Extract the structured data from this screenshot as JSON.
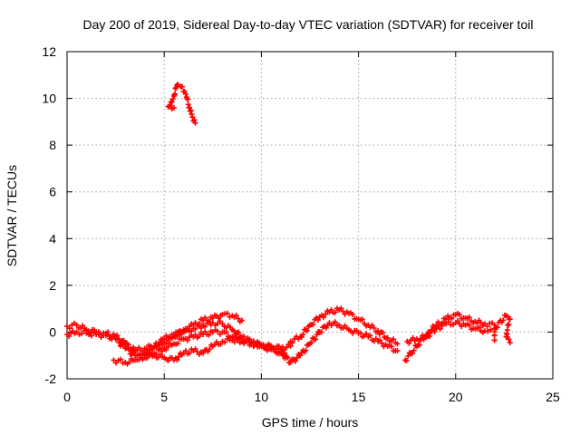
{
  "chart_data": {
    "type": "scatter",
    "title": "Day 200 of 2019, Sidereal Day-to-day VTEC variation (SDTVAR) for receiver toil",
    "xlabel": "GPS time / hours",
    "ylabel": "SDTVAR / TECUs",
    "xlim": [
      0,
      25
    ],
    "ylim": [
      -2,
      12
    ],
    "xticks": [
      0,
      5,
      10,
      15,
      20,
      25
    ],
    "yticks": [
      -2,
      0,
      2,
      4,
      6,
      8,
      10,
      12
    ],
    "grid": true,
    "marker": "plus",
    "color": "#ff0000",
    "series": [
      {
        "name": "s1",
        "points": [
          [
            0,
            0.25
          ],
          [
            0.5,
            0.3
          ],
          [
            1,
            0.1
          ],
          [
            1.5,
            0
          ],
          [
            2,
            -0.05
          ],
          [
            2.5,
            -0.2
          ],
          [
            3,
            -0.5
          ],
          [
            3.5,
            -0.8
          ],
          [
            4,
            -0.7
          ],
          [
            4.5,
            -0.6
          ],
          [
            5,
            -0.45
          ],
          [
            5.5,
            -0.2
          ],
          [
            6,
            0.1
          ],
          [
            6.5,
            0.3
          ],
          [
            7,
            0.5
          ],
          [
            7.5,
            0.6
          ],
          [
            8,
            0.75
          ],
          [
            8.5,
            0.7
          ],
          [
            9,
            0.5
          ]
        ]
      },
      {
        "name": "s2",
        "points": [
          [
            0,
            -0.1
          ],
          [
            0.5,
            0
          ],
          [
            1,
            -0.05
          ],
          [
            1.5,
            -0.1
          ],
          [
            2,
            -0.15
          ],
          [
            2.5,
            -0.3
          ],
          [
            3,
            -0.7
          ],
          [
            3.5,
            -1
          ],
          [
            4,
            -1.1
          ],
          [
            4.5,
            -0.9
          ],
          [
            5,
            -0.7
          ],
          [
            5.5,
            -0.5
          ],
          [
            6,
            -0.3
          ],
          [
            6.5,
            -0.2
          ],
          [
            7,
            -0.1
          ],
          [
            7.5,
            0
          ],
          [
            8,
            0
          ],
          [
            8.5,
            -0.2
          ],
          [
            9,
            -0.4
          ],
          [
            9.5,
            -0.5
          ],
          [
            10,
            -0.6
          ],
          [
            10.5,
            -0.6
          ],
          [
            11,
            -0.7
          ],
          [
            11.5,
            -0.6
          ]
        ]
      },
      {
        "name": "s3",
        "points": [
          [
            2.4,
            -1.2
          ],
          [
            3,
            -1.3
          ],
          [
            3.5,
            -1.2
          ],
          [
            4,
            -0.95
          ],
          [
            4.5,
            -0.6
          ],
          [
            5,
            -0.3
          ],
          [
            5.5,
            -0.1
          ],
          [
            6,
            0
          ],
          [
            6.5,
            0.15
          ],
          [
            7,
            0.3
          ],
          [
            7.5,
            0.4
          ],
          [
            8,
            0.35
          ],
          [
            8.5,
            0.1
          ],
          [
            9,
            -0.2
          ],
          [
            9.5,
            -0.45
          ],
          [
            10,
            -0.6
          ],
          [
            10.5,
            -0.75
          ],
          [
            11,
            -0.9
          ],
          [
            11.3,
            -1.05
          ]
        ]
      },
      {
        "name": "s4",
        "points": [
          [
            4,
            -1
          ],
          [
            4.5,
            -1
          ],
          [
            5,
            -1.1
          ],
          [
            5.5,
            -1.2
          ],
          [
            6,
            -0.9
          ],
          [
            6.5,
            -0.8
          ],
          [
            7,
            -0.9
          ],
          [
            7.5,
            -0.6
          ],
          [
            8,
            -0.4
          ],
          [
            8.5,
            -0.35
          ],
          [
            9,
            -0.3
          ],
          [
            9.5,
            -0.4
          ],
          [
            10,
            -0.55
          ],
          [
            10.5,
            -0.7
          ],
          [
            11,
            -0.85
          ],
          [
            11.5,
            -1.3
          ],
          [
            12,
            -1
          ],
          [
            12.5,
            -0.5
          ],
          [
            13,
            0
          ],
          [
            13.5,
            0.4
          ],
          [
            14,
            0.3
          ],
          [
            14.5,
            0.1
          ],
          [
            15,
            -0.05
          ],
          [
            15.5,
            -0.2
          ],
          [
            16,
            -0.4
          ],
          [
            16.5,
            -0.6
          ],
          [
            17,
            -0.8
          ]
        ]
      },
      {
        "name": "s5",
        "points": [
          [
            11.5,
            -0.4
          ],
          [
            12,
            -0.2
          ],
          [
            12.5,
            0.3
          ],
          [
            13,
            0.65
          ],
          [
            13.5,
            0.85
          ],
          [
            14,
            0.95
          ],
          [
            14.5,
            0.8
          ],
          [
            15,
            0.55
          ],
          [
            15.5,
            0.3
          ],
          [
            16,
            0.05
          ],
          [
            16.5,
            -0.25
          ],
          [
            17,
            -0.5
          ]
        ]
      },
      {
        "name": "s6",
        "points": [
          [
            17.4,
            -1.2
          ],
          [
            17.7,
            -0.9
          ],
          [
            18,
            -0.6
          ],
          [
            18.5,
            -0.1
          ],
          [
            19,
            0.3
          ],
          [
            19.5,
            0.55
          ],
          [
            20,
            0.75
          ],
          [
            20.5,
            0.6
          ],
          [
            21,
            0.45
          ],
          [
            21.5,
            0.35
          ],
          [
            22,
            0.3
          ]
        ]
      },
      {
        "name": "s7",
        "points": [
          [
            17.5,
            -0.4
          ],
          [
            18,
            -0.3
          ],
          [
            18.5,
            -0.2
          ],
          [
            19,
            0.15
          ],
          [
            19.5,
            0.35
          ],
          [
            20,
            0.4
          ],
          [
            20.5,
            0.3
          ],
          [
            21,
            0.15
          ],
          [
            21.5,
            0.05
          ],
          [
            21.8,
            0.1
          ]
        ]
      },
      {
        "name": "s8",
        "points": [
          [
            22,
            -0.35
          ],
          [
            22,
            -0.15
          ],
          [
            22,
            0.15
          ],
          [
            22.6,
            0.7
          ],
          [
            22.8,
            0.55
          ],
          [
            22.7,
            0.3
          ],
          [
            22.6,
            -0.2
          ],
          [
            22.8,
            -0.45
          ]
        ]
      },
      {
        "name": "s9",
        "points": [
          [
            5.2,
            9.65
          ],
          [
            5.35,
            9.85
          ],
          [
            5.5,
            10.1
          ],
          [
            5.6,
            10.45
          ],
          [
            5.7,
            10.6
          ],
          [
            5.85,
            10.5
          ],
          [
            6,
            10.3
          ],
          [
            6.15,
            10.05
          ],
          [
            6.3,
            9.6
          ],
          [
            6.45,
            9.2
          ],
          [
            6.6,
            8.95
          ]
        ]
      },
      {
        "name": "s10",
        "points": [
          [
            5.3,
            9.7
          ],
          [
            5.5,
            9.6
          ]
        ]
      }
    ]
  }
}
